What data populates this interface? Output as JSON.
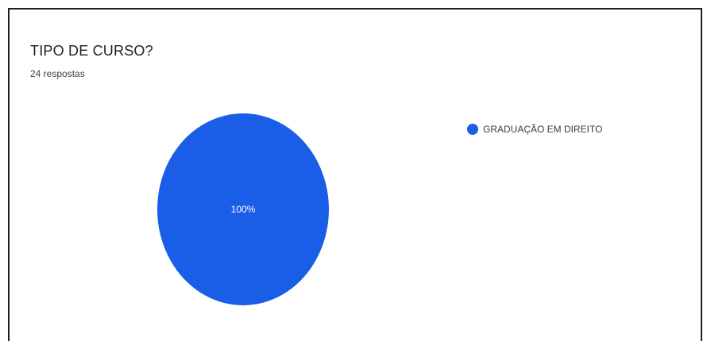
{
  "card": {
    "title": "TIPO DE CURSO?",
    "subtitle": "24 respostas"
  },
  "chart_data": {
    "type": "pie",
    "categories": [
      "GRADUAÇÃO EM DIREITO"
    ],
    "values": [
      100
    ],
    "value_labels": [
      "100%"
    ],
    "colors": [
      "#1a5ee8"
    ],
    "legend_position": "right"
  }
}
